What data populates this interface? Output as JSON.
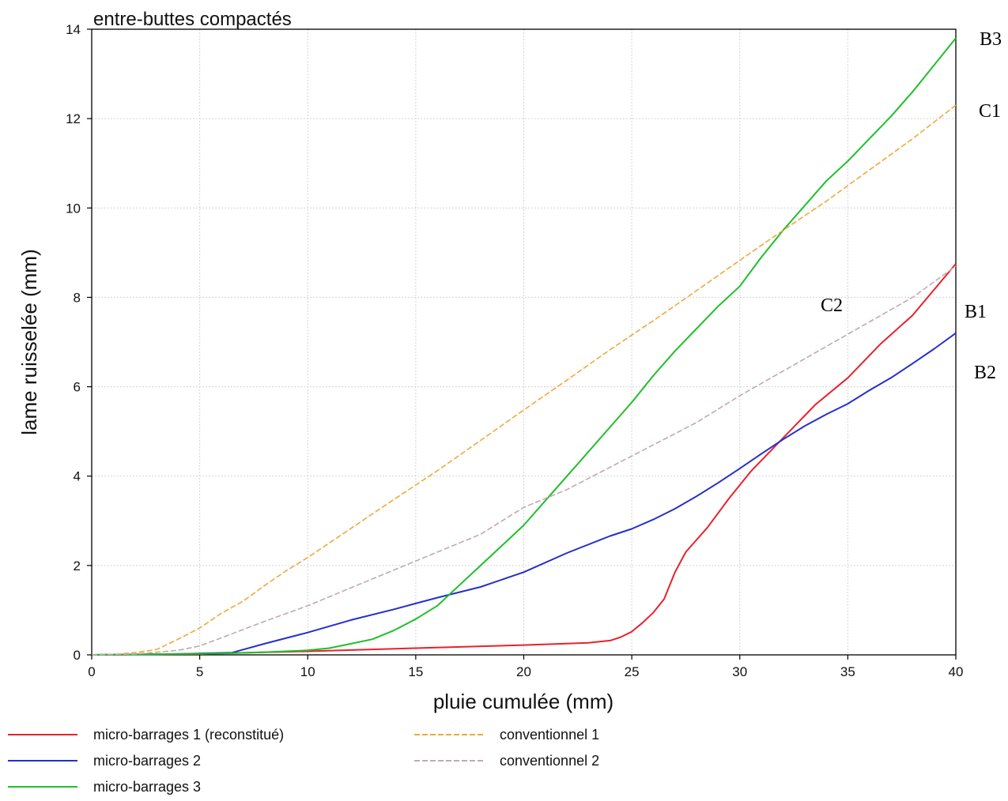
{
  "chart_data": {
    "type": "line",
    "title": "entre-buttes compactés",
    "xlabel": "pluie cumulée (mm)",
    "ylabel": "lame ruisselée (mm)",
    "xlim": [
      0,
      40
    ],
    "ylim": [
      0,
      14
    ],
    "xticks": [
      0,
      5,
      10,
      15,
      20,
      25,
      30,
      35,
      40
    ],
    "yticks": [
      0,
      2,
      4,
      6,
      8,
      10,
      12,
      14
    ],
    "grid": true,
    "legend_position": "bottom",
    "series": [
      {
        "name": "micro-barrages 1 (reconstitué)",
        "end_label": "B1",
        "color": "#e8212b",
        "dash": "solid",
        "points": [
          [
            0,
            0
          ],
          [
            5,
            0.02
          ],
          [
            6.5,
            0.04
          ],
          [
            10,
            0.08
          ],
          [
            15,
            0.15
          ],
          [
            20,
            0.22
          ],
          [
            23,
            0.27
          ],
          [
            24,
            0.32
          ],
          [
            24.5,
            0.4
          ],
          [
            25,
            0.52
          ],
          [
            25.5,
            0.72
          ],
          [
            26,
            0.95
          ],
          [
            26.5,
            1.25
          ],
          [
            27,
            1.85
          ],
          [
            27.5,
            2.3
          ],
          [
            28.5,
            2.85
          ],
          [
            29.5,
            3.5
          ],
          [
            30.5,
            4.1
          ],
          [
            32,
            4.85
          ],
          [
            33.5,
            5.6
          ],
          [
            35,
            6.2
          ],
          [
            36.5,
            6.95
          ],
          [
            38,
            7.6
          ],
          [
            40,
            8.75
          ]
        ]
      },
      {
        "name": "micro-barrages 2",
        "end_label": "B2",
        "color": "#2530c9",
        "dash": "solid",
        "points": [
          [
            0,
            0
          ],
          [
            4,
            0.02
          ],
          [
            6.5,
            0.05
          ],
          [
            8,
            0.25
          ],
          [
            10,
            0.5
          ],
          [
            12,
            0.78
          ],
          [
            14,
            1.02
          ],
          [
            15,
            1.15
          ],
          [
            16,
            1.28
          ],
          [
            18,
            1.52
          ],
          [
            20,
            1.85
          ],
          [
            22,
            2.28
          ],
          [
            24,
            2.66
          ],
          [
            25,
            2.82
          ],
          [
            26,
            3.03
          ],
          [
            27,
            3.27
          ],
          [
            28,
            3.55
          ],
          [
            29,
            3.85
          ],
          [
            30,
            4.17
          ],
          [
            31,
            4.5
          ],
          [
            32,
            4.82
          ],
          [
            33,
            5.12
          ],
          [
            34,
            5.38
          ],
          [
            35,
            5.62
          ],
          [
            36,
            5.92
          ],
          [
            37,
            6.2
          ],
          [
            38,
            6.52
          ],
          [
            39,
            6.85
          ],
          [
            40,
            7.2
          ]
        ]
      },
      {
        "name": "micro-barrages 3",
        "end_label": "B3",
        "color": "#1fbf2a",
        "dash": "solid",
        "points": [
          [
            0,
            0
          ],
          [
            6,
            0.03
          ],
          [
            8,
            0.06
          ],
          [
            10,
            0.1
          ],
          [
            11,
            0.15
          ],
          [
            12,
            0.25
          ],
          [
            13,
            0.35
          ],
          [
            14,
            0.55
          ],
          [
            15,
            0.8
          ],
          [
            16,
            1.1
          ],
          [
            17,
            1.55
          ],
          [
            18,
            2.0
          ],
          [
            19,
            2.45
          ],
          [
            20,
            2.9
          ],
          [
            21,
            3.45
          ],
          [
            22,
            4.0
          ],
          [
            23,
            4.55
          ],
          [
            24,
            5.1
          ],
          [
            25,
            5.65
          ],
          [
            26,
            6.25
          ],
          [
            27,
            6.8
          ],
          [
            28,
            7.3
          ],
          [
            29,
            7.8
          ],
          [
            30,
            8.25
          ],
          [
            31,
            8.9
          ],
          [
            32,
            9.5
          ],
          [
            33,
            10.05
          ],
          [
            34,
            10.6
          ],
          [
            35,
            11.05
          ],
          [
            36,
            11.55
          ],
          [
            37,
            12.05
          ],
          [
            38,
            12.6
          ],
          [
            39,
            13.2
          ],
          [
            40,
            13.8
          ]
        ]
      },
      {
        "name": "conventionnel 1",
        "end_label": "C1",
        "color": "#f2a83a",
        "dash": "dashed",
        "points": [
          [
            0,
            0
          ],
          [
            1,
            0.01
          ],
          [
            2,
            0.05
          ],
          [
            3,
            0.12
          ],
          [
            4,
            0.35
          ],
          [
            5,
            0.6
          ],
          [
            6,
            0.93
          ],
          [
            7,
            1.2
          ],
          [
            8,
            1.55
          ],
          [
            9,
            1.88
          ],
          [
            10,
            2.18
          ],
          [
            12,
            2.83
          ],
          [
            14,
            3.48
          ],
          [
            16,
            4.12
          ],
          [
            18,
            4.8
          ],
          [
            20,
            5.48
          ],
          [
            22,
            6.15
          ],
          [
            24,
            6.83
          ],
          [
            26,
            7.48
          ],
          [
            28,
            8.15
          ],
          [
            30,
            8.83
          ],
          [
            32,
            9.5
          ],
          [
            34,
            10.15
          ],
          [
            36,
            10.85
          ],
          [
            38,
            11.55
          ],
          [
            40,
            12.3
          ]
        ]
      },
      {
        "name": "conventionnel 2",
        "end_label": "C2",
        "color": "#c4a8b0",
        "dash": "dashed",
        "points": [
          [
            0,
            0
          ],
          [
            2,
            0.02
          ],
          [
            4,
            0.1
          ],
          [
            5,
            0.2
          ],
          [
            6,
            0.38
          ],
          [
            8,
            0.75
          ],
          [
            10,
            1.1
          ],
          [
            12,
            1.5
          ],
          [
            14,
            1.9
          ],
          [
            16,
            2.3
          ],
          [
            18,
            2.7
          ],
          [
            20,
            3.3
          ],
          [
            22,
            3.7
          ],
          [
            24,
            4.2
          ],
          [
            26,
            4.7
          ],
          [
            28,
            5.2
          ],
          [
            30,
            5.8
          ],
          [
            32,
            6.35
          ],
          [
            34,
            6.9
          ],
          [
            36,
            7.45
          ],
          [
            38,
            8.0
          ],
          [
            40,
            8.7
          ]
        ]
      }
    ]
  }
}
